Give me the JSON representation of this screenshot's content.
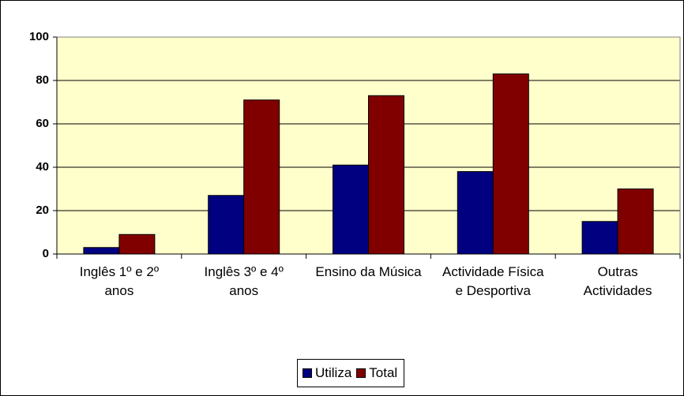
{
  "chart_data": {
    "type": "bar",
    "categories": [
      "Inglês 1º e 2º anos",
      "Inglês 3º e 4º anos",
      "Ensino da Música",
      "Actividade Física e Desportiva",
      "Outras Actividades"
    ],
    "series": [
      {
        "name": "Utiliza",
        "color": "#000080",
        "values": [
          3,
          27,
          41,
          38,
          15
        ]
      },
      {
        "name": "Total",
        "color": "#800000",
        "values": [
          9,
          71,
          73,
          83,
          30
        ]
      }
    ],
    "ylim": [
      0,
      100
    ],
    "yticks": [
      0,
      20,
      40,
      60,
      80,
      100
    ],
    "grid": true,
    "legend": "bottom"
  }
}
